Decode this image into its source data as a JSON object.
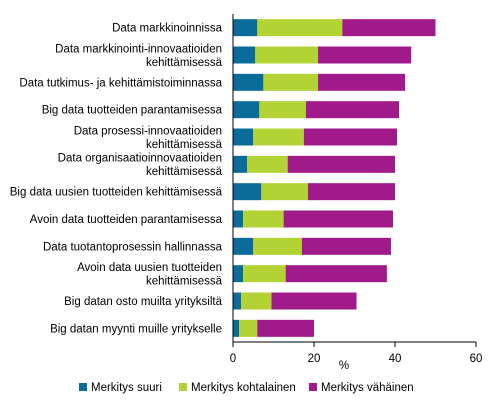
{
  "chart_data": {
    "type": "bar",
    "orientation": "horizontal",
    "stacked": true,
    "categories": [
      "Data markkinoinnissa",
      "Data markkinointi-innovaatioiden\nkehittämisessä",
      "Data tutkimus- ja kehittämistoiminnassa",
      "Big data  tuotteiden parantamisessa",
      "Data prosessi-innovaatioiden\nkehittämisessä",
      "Data organisaatioinnovaatioiden\nkehittämisessä",
      "Big data uusien tuotteiden kehittämisessä",
      "Avoin data tuotteiden parantamisessa",
      "Data tuotantoprosessin hallinnassa",
      "Avoin data uusien tuotteiden\nkehittämisessä",
      "Big datan osto muilta yrityksiltä",
      "Big datan myynti muille yritykselle"
    ],
    "series": [
      {
        "name": "Merkitys suuri",
        "color": "#0b6c9c",
        "values": [
          6,
          5.5,
          7.5,
          6.5,
          5,
          3.5,
          7,
          2.5,
          5,
          2.5,
          2,
          1.5
        ]
      },
      {
        "name": "Merkitys kohtalainen",
        "color": "#b3d334",
        "values": [
          21,
          15.5,
          13.5,
          11.5,
          12.5,
          10,
          11.5,
          10,
          12,
          10.5,
          7.5,
          4.5
        ]
      },
      {
        "name": "Merkitys vähäinen",
        "color": "#a01a8a",
        "values": [
          23,
          23,
          21.5,
          23,
          23,
          26.5,
          21.5,
          27,
          22,
          25,
          21,
          14
        ]
      }
    ],
    "xlabel": "%",
    "xlim": [
      0,
      60
    ],
    "xticks": [
      "0",
      "20",
      "40",
      "60"
    ],
    "grid": false,
    "legend_position": "bottom"
  }
}
